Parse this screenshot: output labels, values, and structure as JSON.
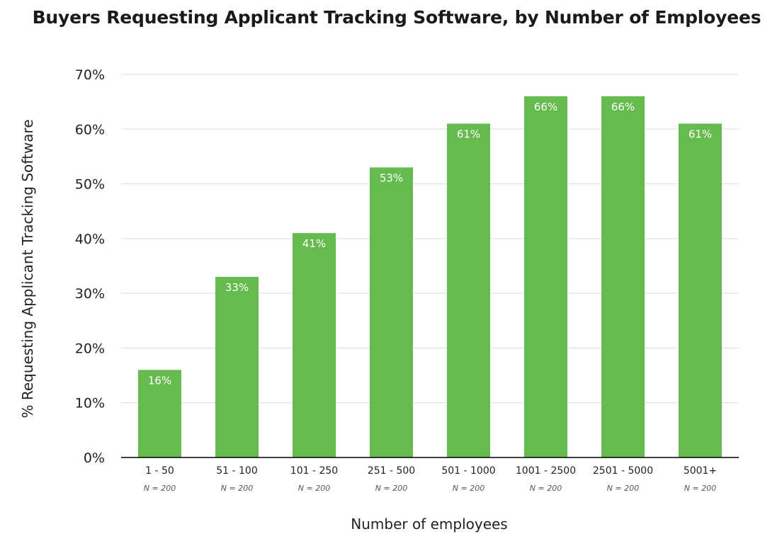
{
  "colors": {
    "bar": "#66bb4f",
    "grid": "#dddddd",
    "axis": "#000000"
  },
  "chart_data": {
    "type": "bar",
    "title": "Buyers Requesting Applicant Tracking Software, by Number of Employees",
    "xlabel": "Number of employees",
    "ylabel": "% Requesting Applicant Tracking Software",
    "categories": [
      "1 - 50",
      "51 - 100",
      "101 - 250",
      "251 - 500",
      "501 - 1000",
      "1001 - 2500",
      "2501 - 5000",
      "5001+"
    ],
    "sample_sizes": [
      "N = 200",
      "N = 200",
      "N = 200",
      "N = 200",
      "N = 200",
      "N = 200",
      "N = 200",
      "N = 200"
    ],
    "values": [
      16,
      33,
      41,
      53,
      61,
      66,
      66,
      61
    ],
    "value_labels": [
      "16%",
      "33%",
      "41%",
      "53%",
      "61%",
      "66%",
      "66%",
      "61%"
    ],
    "ylim": [
      0,
      70
    ],
    "yticks": [
      0,
      10,
      20,
      30,
      40,
      50,
      60,
      70
    ],
    "ytick_labels": [
      "0%",
      "10%",
      "20%",
      "30%",
      "40%",
      "50%",
      "60%",
      "70%"
    ],
    "grid": true,
    "legend": "none"
  }
}
